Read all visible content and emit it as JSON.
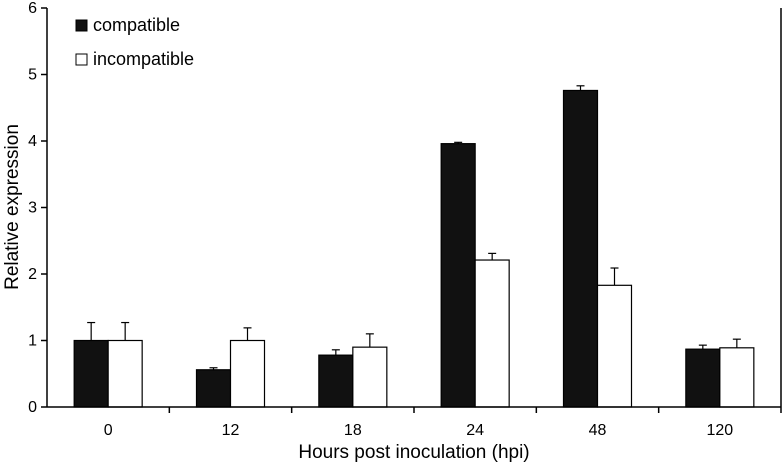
{
  "chart_data": {
    "type": "bar",
    "categories": [
      "0",
      "12",
      "18",
      "24",
      "48",
      "120"
    ],
    "series": [
      {
        "name": "compatible",
        "color": "#111111",
        "values": [
          1.0,
          0.56,
          0.78,
          3.96,
          4.76,
          0.87
        ],
        "errors": [
          0.27,
          0.03,
          0.08,
          0.02,
          0.07,
          0.06
        ]
      },
      {
        "name": "incompatible",
        "color": "#ffffff",
        "values": [
          1.0,
          1.0,
          0.9,
          2.21,
          1.83,
          0.89
        ],
        "errors": [
          0.27,
          0.19,
          0.2,
          0.1,
          0.26,
          0.13
        ]
      }
    ],
    "xlabel": "Hours post inoculation (hpi)",
    "ylabel": "Relative expression",
    "ylim": [
      0,
      6
    ],
    "yticks": [
      "0",
      "1",
      "2",
      "3",
      "4",
      "5",
      "6"
    ],
    "grid": false,
    "legend_position": "top-left"
  }
}
